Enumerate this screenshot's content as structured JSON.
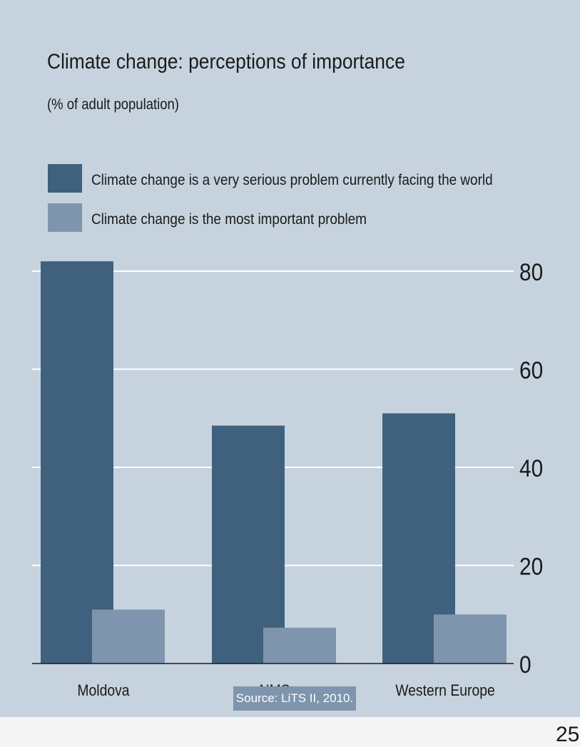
{
  "page_number": "25",
  "source_note": "Source: LiTS II, 2010.",
  "colors": {
    "background": "#c6d3df",
    "series_dark": "#3f617d",
    "series_light": "#7f95ad",
    "grid": "#ffffff"
  },
  "chart_data": {
    "type": "bar",
    "title": "Climate change: perceptions of importance",
    "subtitle": "(% of adult population)",
    "categories": [
      "Moldova",
      "NMS",
      "Western Europe"
    ],
    "series": [
      {
        "name": "Climate change is a very serious problem currently facing the world",
        "values": [
          82,
          48.5,
          51
        ]
      },
      {
        "name": "Climate change is the most important problem",
        "values": [
          11,
          7.3,
          10
        ]
      }
    ],
    "y_ticks": [
      "80",
      "60",
      "40",
      "20",
      "0"
    ],
    "ylim": [
      0,
      80
    ],
    "y_axis_side": "right",
    "grid": true,
    "legend_position": "top-left"
  }
}
